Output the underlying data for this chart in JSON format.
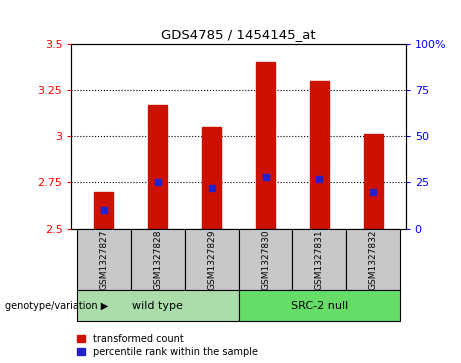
{
  "title": "GDS4785 / 1454145_at",
  "samples": [
    "GSM1327827",
    "GSM1327828",
    "GSM1327829",
    "GSM1327830",
    "GSM1327831",
    "GSM1327832"
  ],
  "bar_bottoms": [
    2.5,
    2.5,
    2.5,
    2.5,
    2.5,
    2.5
  ],
  "bar_tops": [
    2.7,
    3.17,
    3.05,
    3.4,
    3.3,
    3.01
  ],
  "percentile_values": [
    0.1,
    0.25,
    0.22,
    0.28,
    0.27,
    0.2
  ],
  "bar_color": "#cc1100",
  "dot_color": "#2222cc",
  "ylim_left": [
    2.5,
    3.5
  ],
  "ylim_right": [
    0,
    1
  ],
  "yticks_left": [
    2.5,
    2.75,
    3.0,
    3.25,
    3.5
  ],
  "ytick_labels_left": [
    "2.5",
    "2.75",
    "3",
    "3.25",
    "3.5"
  ],
  "yticks_right": [
    0,
    0.25,
    0.5,
    0.75,
    1.0
  ],
  "ytick_labels_right": [
    "0",
    "25",
    "50",
    "75",
    "100%"
  ],
  "groups": [
    {
      "label": "wild type",
      "indices": [
        0,
        1,
        2
      ],
      "color": "#aaddaa"
    },
    {
      "label": "SRC-2 null",
      "indices": [
        3,
        4,
        5
      ],
      "color": "#66dd66"
    }
  ],
  "genotype_label": "genotype/variation",
  "legend_red": "transformed count",
  "legend_blue": "percentile rank within the sample",
  "grid_yticks": [
    2.75,
    3.0,
    3.25
  ],
  "bar_width": 0.35,
  "fig_bg": "#ffffff",
  "axis_bg": "#ffffff",
  "label_area_color": "#c8c8c8"
}
